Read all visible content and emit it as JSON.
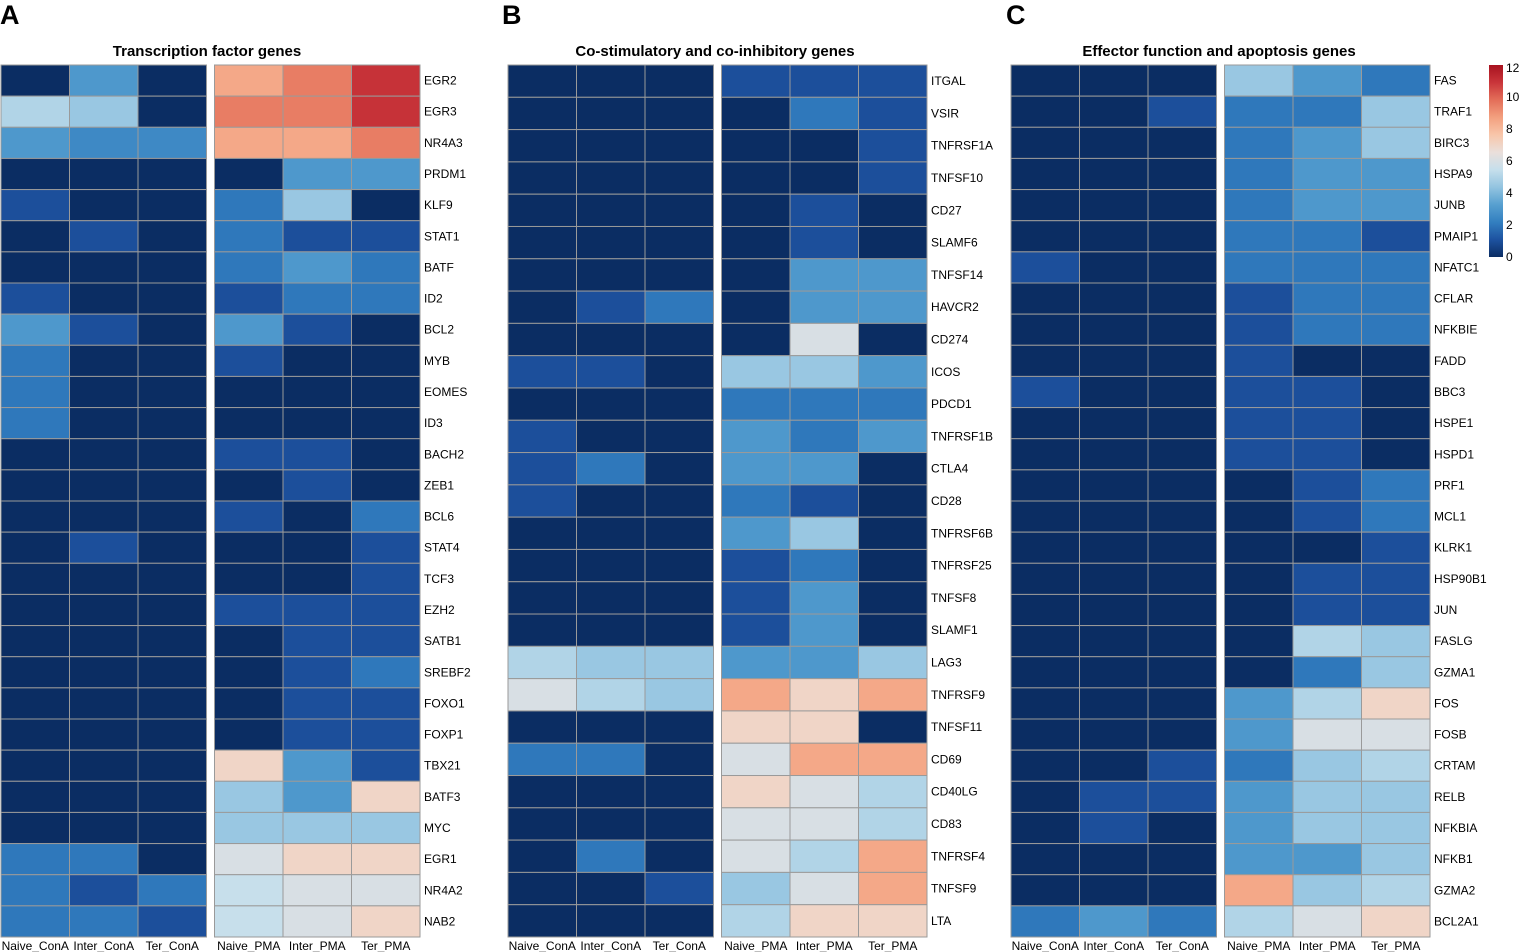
{
  "color_scale": {
    "stops": [
      "#0b2d63",
      "#1d52a0",
      "#337fc0",
      "#57a0d0",
      "#93c4e0",
      "#c6dfec",
      "#eadfdb",
      "#f8c6aa",
      "#f3a07f",
      "#e36e59",
      "#c9353a",
      "#a8121f"
    ],
    "min": 0,
    "max": 12
  },
  "legend": {
    "ticks": [
      "12",
      "10",
      "8",
      "6",
      "4",
      "2",
      "0"
    ]
  },
  "chart_data": [
    {
      "type": "heatmap",
      "letter": "A",
      "title": "Transcription factor genes",
      "columns": [
        "Naive_ConA",
        "Inter_ConA",
        "Ter_ConA",
        "Naive_PMA",
        "Inter_PMA",
        "Ter_PMA"
      ],
      "genes": [
        "EGR2",
        "EGR3",
        "NR4A3",
        "PRDM1",
        "KLF9",
        "STAT1",
        "BATF",
        "ID2",
        "BCL2",
        "MYB",
        "EOMES",
        "ID3",
        "BACH2",
        "ZEB1",
        "BCL6",
        "STAT4",
        "TCF3",
        "EZH2",
        "SATB1",
        "SREBF2",
        "FOXO1",
        "FOXP1",
        "TBX21",
        "BATF3",
        "MYC",
        "EGR1",
        "NR4A2",
        "NAB2"
      ],
      "values": [
        [
          0,
          3,
          0,
          8.5,
          9.5,
          11
        ],
        [
          5,
          4.5,
          0,
          9.5,
          9.5,
          11
        ],
        [
          3,
          2.5,
          2.5,
          8.5,
          8.5,
          9.5
        ],
        [
          0,
          0,
          0,
          0,
          3,
          3
        ],
        [
          1,
          0,
          0,
          2,
          4.5,
          0
        ],
        [
          0,
          1,
          0,
          2,
          1,
          1
        ],
        [
          0,
          0,
          0,
          2,
          3,
          2
        ],
        [
          1,
          0,
          0,
          1,
          2,
          2
        ],
        [
          3,
          1,
          0,
          3,
          1,
          0
        ],
        [
          2,
          0,
          0,
          1,
          0,
          0
        ],
        [
          2,
          0,
          0,
          0,
          0,
          0
        ],
        [
          2,
          0,
          0,
          0,
          0,
          0
        ],
        [
          0,
          0,
          0,
          1,
          1,
          0
        ],
        [
          0,
          0,
          0,
          0,
          1,
          0
        ],
        [
          0,
          0,
          0,
          1,
          0,
          2
        ],
        [
          0,
          1,
          0,
          0,
          0,
          1
        ],
        [
          0,
          0,
          0,
          0,
          0,
          1
        ],
        [
          0,
          0,
          0,
          1,
          1,
          1
        ],
        [
          0,
          0,
          0,
          0,
          1,
          1
        ],
        [
          0,
          0,
          0,
          0,
          1,
          2
        ],
        [
          0,
          0,
          0,
          0,
          1,
          1
        ],
        [
          0,
          0,
          0,
          0,
          1,
          1
        ],
        [
          0,
          0,
          0,
          7,
          3,
          1
        ],
        [
          0,
          0,
          0,
          4.5,
          3,
          7
        ],
        [
          0,
          0,
          0,
          4.5,
          4.5,
          4.5
        ],
        [
          2,
          2,
          0,
          6,
          7,
          7
        ],
        [
          2,
          1,
          2,
          5.5,
          6,
          6
        ],
        [
          2,
          2,
          1,
          5.5,
          6,
          7
        ]
      ]
    },
    {
      "type": "heatmap",
      "letter": "B",
      "title": "Co-stimulatory and co-inhibitory genes",
      "columns": [
        "Naive_ConA",
        "Inter_ConA",
        "Ter_ConA",
        "Naive_PMA",
        "Inter_PMA",
        "Ter_PMA"
      ],
      "genes": [
        "ITGAL",
        "VSIR",
        "TNFRSF1A",
        "TNFSF10",
        "CD27",
        "SLAMF6",
        "TNFSF14",
        "HAVCR2",
        "CD274",
        "ICOS",
        "PDCD1",
        "TNFRSF1B",
        "CTLA4",
        "CD28",
        "TNFRSF6B",
        "TNFRSF25",
        "TNFSF8",
        "SLAMF1",
        "LAG3",
        "TNFRSF9",
        "TNFSF11",
        "CD69",
        "CD40LG",
        "CD83",
        "TNFRSF4",
        "TNFSF9",
        "LTA"
      ],
      "values": [
        [
          0,
          0,
          0,
          1,
          1,
          1
        ],
        [
          0,
          0,
          0,
          0,
          2,
          1
        ],
        [
          0,
          0,
          0,
          0,
          0,
          1
        ],
        [
          0,
          0,
          0,
          0,
          0,
          1
        ],
        [
          0,
          0,
          0,
          0,
          1,
          0
        ],
        [
          0,
          0,
          0,
          0,
          1,
          0
        ],
        [
          0,
          0,
          0,
          0,
          3,
          3
        ],
        [
          0,
          1,
          2,
          0,
          3,
          3
        ],
        [
          0,
          0,
          0,
          0,
          6,
          0
        ],
        [
          1,
          1,
          0,
          4.5,
          4.5,
          3
        ],
        [
          0,
          0,
          0,
          2,
          2,
          2
        ],
        [
          1,
          0,
          0,
          3,
          2,
          3
        ],
        [
          1,
          2,
          0,
          3,
          3,
          0
        ],
        [
          1,
          0,
          0,
          2,
          1,
          0
        ],
        [
          0,
          0,
          0,
          3,
          4.5,
          0
        ],
        [
          0,
          0,
          0,
          1,
          2,
          0
        ],
        [
          0,
          0,
          0,
          1,
          3,
          0
        ],
        [
          0,
          0,
          0,
          1,
          3,
          0
        ],
        [
          5,
          4.5,
          4.5,
          3,
          3,
          4.5
        ],
        [
          6,
          5,
          4.5,
          8.5,
          7,
          8.5
        ],
        [
          0,
          0,
          0,
          7,
          7,
          0
        ],
        [
          2,
          2,
          0,
          6,
          8.5,
          8.5
        ],
        [
          0,
          0,
          0,
          7,
          6,
          5
        ],
        [
          0,
          0,
          0,
          6,
          6,
          5
        ],
        [
          0,
          2,
          0,
          6,
          5,
          8.5
        ],
        [
          0,
          0,
          1,
          4.5,
          6,
          8.5
        ],
        [
          0,
          0,
          0,
          5,
          7,
          7
        ]
      ]
    },
    {
      "type": "heatmap",
      "letter": "C",
      "title": "Effector function and apoptosis genes",
      "columns": [
        "Naive_ConA",
        "Inter_ConA",
        "Ter_ConA",
        "Naive_PMA",
        "Inter_PMA",
        "Ter_PMA"
      ],
      "genes": [
        "FAS",
        "TRAF1",
        "BIRC3",
        "HSPA9",
        "JUNB",
        "PMAIP1",
        "NFATC1",
        "CFLAR",
        "NFKBIE",
        "FADD",
        "BBC3",
        "HSPE1",
        "HSPD1",
        "PRF1",
        "MCL1",
        "KLRK1",
        "HSP90B1",
        "JUN",
        "FASLG",
        "GZMA1",
        "FOS",
        "FOSB",
        "CRTAM",
        "RELB",
        "NFKBIA",
        "NFKB1",
        "GZMA2",
        "BCL2A1"
      ],
      "values": [
        [
          0,
          0,
          0,
          4.5,
          3,
          2
        ],
        [
          0,
          0,
          1,
          2,
          2,
          4.5
        ],
        [
          0,
          0,
          0,
          2,
          3,
          4.5
        ],
        [
          0,
          0,
          0,
          2,
          3,
          3
        ],
        [
          0,
          0,
          0,
          2,
          3,
          3
        ],
        [
          0,
          0,
          0,
          2,
          2,
          1
        ],
        [
          1,
          0,
          0,
          2,
          2,
          2
        ],
        [
          0,
          0,
          0,
          1,
          2,
          2
        ],
        [
          0,
          0,
          0,
          1,
          2,
          2
        ],
        [
          0,
          0,
          0,
          1,
          0,
          0
        ],
        [
          1,
          0,
          0,
          1,
          1,
          0
        ],
        [
          0,
          0,
          0,
          1,
          1,
          0
        ],
        [
          0,
          0,
          0,
          1,
          1,
          0
        ],
        [
          0,
          0,
          0,
          0,
          1,
          2
        ],
        [
          0,
          0,
          0,
          0,
          1,
          2
        ],
        [
          0,
          0,
          0,
          0,
          0,
          1
        ],
        [
          0,
          0,
          0,
          0,
          1,
          1
        ],
        [
          0,
          0,
          0,
          0,
          1,
          1
        ],
        [
          0,
          0,
          0,
          0,
          5,
          4.5
        ],
        [
          0,
          0,
          0,
          0,
          2,
          4.5
        ],
        [
          0,
          0,
          0,
          3,
          5,
          7
        ],
        [
          0,
          0,
          0,
          3,
          6,
          6
        ],
        [
          0,
          0,
          1,
          2,
          4.5,
          5
        ],
        [
          0,
          1,
          1,
          3,
          4.5,
          4.5
        ],
        [
          0,
          1,
          0,
          3,
          4.5,
          4.5
        ],
        [
          0,
          0,
          0,
          3,
          3,
          4.5
        ],
        [
          0,
          0,
          0,
          8.5,
          4.5,
          5
        ],
        [
          2,
          3,
          2,
          5,
          6,
          7
        ]
      ]
    }
  ]
}
